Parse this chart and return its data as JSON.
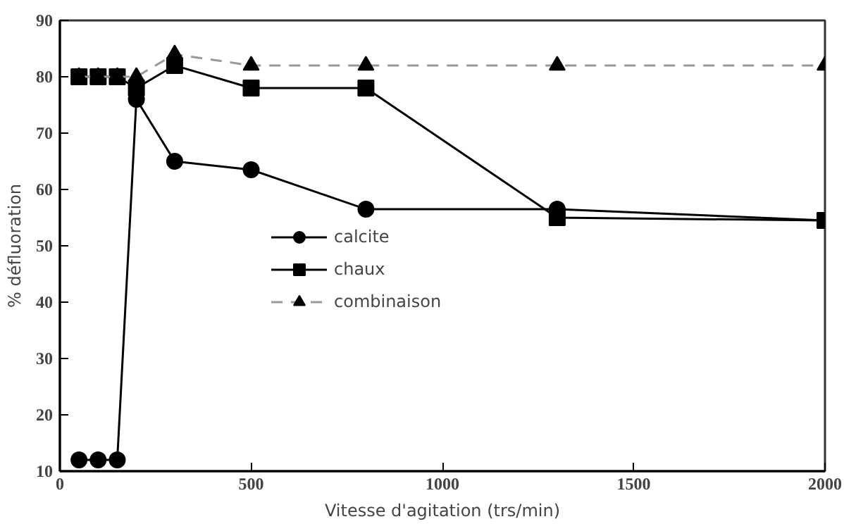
{
  "chart_data": {
    "type": "line",
    "xlabel": "Vitesse d'agitation (trs/min)",
    "ylabel": "% défluoration",
    "xlim": [
      0,
      2000
    ],
    "ylim": [
      10,
      90
    ],
    "xticks": [
      0,
      500,
      1000,
      1500,
      2000
    ],
    "yticks": [
      10,
      20,
      30,
      40,
      50,
      60,
      70,
      80,
      90
    ],
    "legend": "center",
    "series": [
      {
        "name": "calcite",
        "color": "#000000",
        "marker": "circle",
        "line_style": "solid",
        "x": [
          50,
          100,
          150,
          200,
          300,
          500,
          800,
          1300,
          2000
        ],
        "values": [
          12,
          12,
          12,
          76,
          65,
          63.5,
          56.5,
          56.5,
          54.5
        ]
      },
      {
        "name": "chaux",
        "color": "#000000",
        "marker": "square",
        "line_style": "solid",
        "x": [
          50,
          100,
          150,
          200,
          300,
          500,
          800,
          1300,
          2000
        ],
        "values": [
          80,
          80,
          80,
          78,
          82,
          78,
          78,
          55,
          54.5
        ]
      },
      {
        "name": "combinaison",
        "color": "#999999",
        "marker": "triangle",
        "line_style": "dashed",
        "x": [
          50,
          100,
          150,
          200,
          300,
          500,
          800,
          1300,
          2000
        ],
        "values": [
          80,
          80,
          80,
          80,
          84,
          82,
          82,
          82,
          82
        ]
      }
    ]
  }
}
